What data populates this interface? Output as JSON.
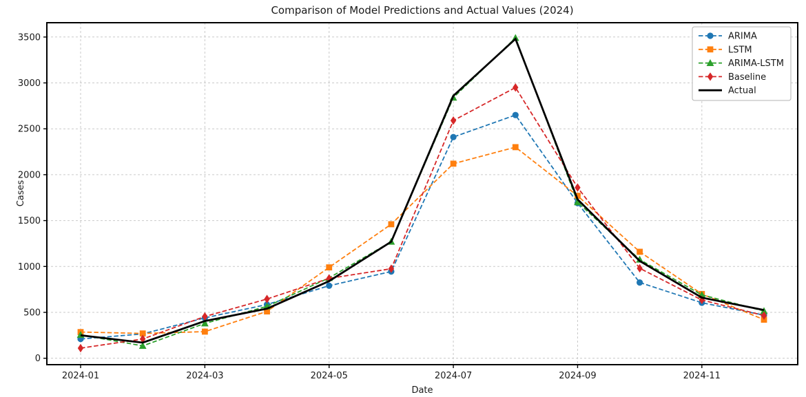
{
  "chart_data": {
    "type": "line",
    "title": "Comparison of Model Predictions and Actual Values (2024)",
    "xlabel": "Date",
    "ylabel": "Cases",
    "x": [
      "2024-01",
      "2024-02",
      "2024-03",
      "2024-04",
      "2024-05",
      "2024-06",
      "2024-07",
      "2024-08",
      "2024-09",
      "2024-10",
      "2024-11",
      "2024-12"
    ],
    "x_tick_labels": [
      "2024-01",
      "2024-03",
      "2024-05",
      "2024-07",
      "2024-09",
      "2024-11"
    ],
    "x_tick_indices": [
      0,
      2,
      4,
      6,
      8,
      10
    ],
    "y_ticks": [
      0,
      500,
      1000,
      1500,
      2000,
      2500,
      3000,
      3500
    ],
    "ylim": [
      -70,
      3656
    ],
    "grid": true,
    "legend_position": "upper right",
    "series": [
      {
        "name": "ARIMA",
        "color": "#1f77b4",
        "linestyle": "dashed",
        "marker": "circle",
        "linewidth": 1.8,
        "values": [
          210,
          265,
          440,
          585,
          790,
          945,
          2410,
          2650,
          1690,
          825,
          605,
          470
        ]
      },
      {
        "name": "LSTM",
        "color": "#ff7f0e",
        "linestyle": "dashed",
        "marker": "square",
        "linewidth": 1.8,
        "values": [
          285,
          270,
          290,
          510,
          990,
          1460,
          2120,
          2300,
          1770,
          1160,
          700,
          420
        ]
      },
      {
        "name": "ARIMA-LSTM",
        "color": "#2ca02c",
        "linestyle": "dashed",
        "marker": "triangle",
        "linewidth": 1.8,
        "values": [
          255,
          135,
          380,
          565,
          875,
          1270,
          2840,
          3490,
          1700,
          1075,
          690,
          515
        ]
      },
      {
        "name": "Baseline",
        "color": "#d62728",
        "linestyle": "dashed",
        "marker": "diamond",
        "linewidth": 1.8,
        "values": [
          110,
          210,
          455,
          645,
          870,
          975,
          2590,
          2950,
          1860,
          980,
          635,
          465
        ]
      },
      {
        "name": "Actual",
        "color": "#000000",
        "linestyle": "solid",
        "marker": "none",
        "linewidth": 2.8,
        "values": [
          250,
          170,
          405,
          540,
          840,
          1270,
          2860,
          3480,
          1730,
          1060,
          660,
          525
        ]
      }
    ],
    "colors": {
      "grid": "#c9c9c9",
      "spine": "#000000",
      "background": "#ffffff"
    }
  }
}
